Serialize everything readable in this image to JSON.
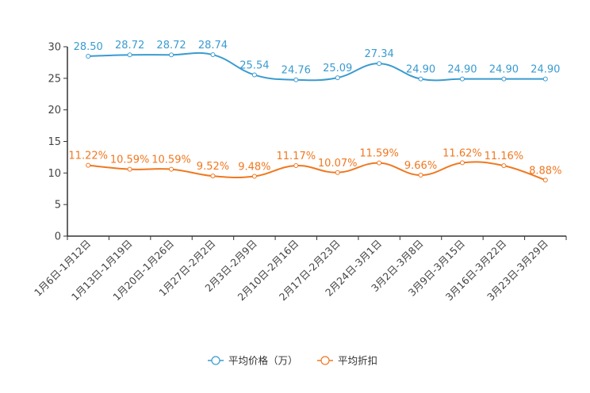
{
  "chart_data": {
    "type": "line",
    "categories": [
      "1月6日-1月12日",
      "1月13日-1月19日",
      "1月20日-1月26日",
      "1月27日-2月2日",
      "2月3日-2月9日",
      "2月10日-2月16日",
      "2月17日-2月23日",
      "2月24日-3月1日",
      "3月2日-3月8日",
      "3月9日-3月15日",
      "3月16日-3月22日",
      "3月23日-3月29日"
    ],
    "ylim": [
      0,
      30
    ],
    "yticks": [
      0,
      5,
      10,
      15,
      20,
      25,
      30
    ],
    "series": [
      {
        "name": "平均价格（万）",
        "color": "#3a9bd0",
        "values": [
          28.5,
          28.72,
          28.72,
          28.74,
          25.54,
          24.76,
          25.09,
          27.34,
          24.9,
          24.9,
          24.9,
          24.9
        ],
        "labels": [
          "28.50",
          "28.72",
          "28.72",
          "28.74",
          "25.54",
          "24.76",
          "25.09",
          "27.34",
          "24.90",
          "24.90",
          "24.90",
          "24.90"
        ]
      },
      {
        "name": "平均折扣",
        "color": "#f07820",
        "values": [
          11.22,
          10.59,
          10.59,
          9.52,
          9.48,
          11.17,
          10.07,
          11.59,
          9.66,
          11.62,
          11.16,
          8.88
        ],
        "labels": [
          "11.22%",
          "10.59%",
          "10.59%",
          "9.52%",
          "9.48%",
          "11.17%",
          "10.07%",
          "11.59%",
          "9.66%",
          "11.62%",
          "11.16%",
          "8.88%"
        ]
      }
    ],
    "legend_position": "bottom-center",
    "grid": false
  }
}
